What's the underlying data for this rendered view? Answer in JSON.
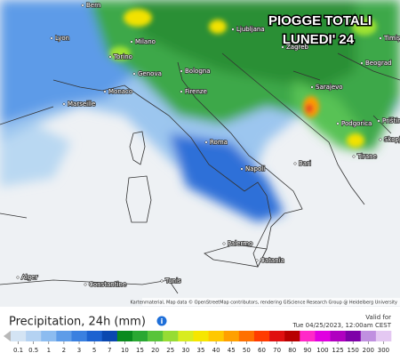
{
  "title": {
    "line1": "PIOGGE TOTALI",
    "line2": "LUNEDI' 24"
  },
  "cities": [
    "Bern",
    "Lyon",
    "Milano",
    "Ljubljana",
    "Zagreb",
    "Timișoara",
    "Beograd",
    "Torino",
    "Genova",
    "Monaco",
    "Bologna",
    "Marseille",
    "Firenze",
    "Sarajevo",
    "Priština",
    "Podgorica",
    "Skopje",
    "Roma",
    "Tirane",
    "Napoli",
    "Bari",
    "Palermo",
    "Catania",
    "Alger",
    "Constantine",
    "Tunis"
  ],
  "attribution": "Kartenmaterial, Map data © OpenStreetMap contributors, rendering GIScience Research Group @ Heidelberg University",
  "legend": {
    "title": "Precipitation, 24h (mm)",
    "valid_label": "Valid for",
    "valid_time": "Tue 04/25/2023, 12:00am CEST",
    "ticks": [
      0.1,
      0.5,
      1,
      2,
      3,
      5,
      7,
      10,
      15,
      20,
      25,
      30,
      35,
      40,
      45,
      50,
      60,
      70,
      80,
      90,
      100,
      125,
      150,
      200,
      300
    ],
    "colors": [
      "#d4e4f4",
      "#b4d2f2",
      "#8cbcf0",
      "#5e9ce8",
      "#3a80e0",
      "#1c62d0",
      "#0a48b0",
      "#0a8a1e",
      "#2aa832",
      "#58c43a",
      "#96dc34",
      "#d8ec20",
      "#f6e600",
      "#ffc800",
      "#ffa000",
      "#ff7000",
      "#ff3c00",
      "#e01010",
      "#b80000",
      "#ff28c8",
      "#e000e0",
      "#b000c0",
      "#7e00a8",
      "#c090e0",
      "#e4c8f2"
    ]
  }
}
